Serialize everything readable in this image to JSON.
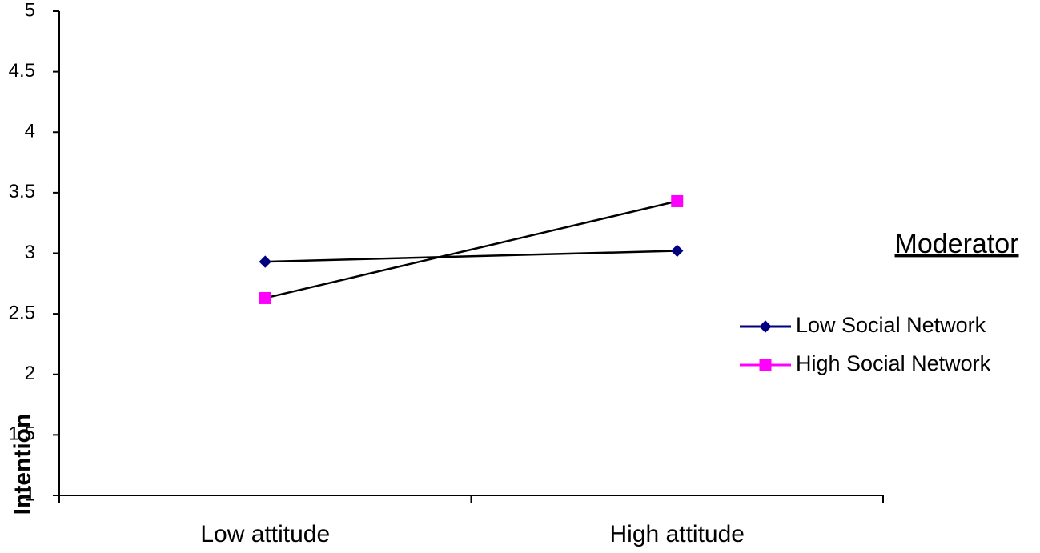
{
  "chart_data": {
    "type": "line",
    "y_label": "Intention",
    "legend_title": "Moderator",
    "legend": "right",
    "categories": [
      "Low attitude",
      "High attitude"
    ],
    "series": [
      {
        "name": "Low Social Network",
        "color": "#000080",
        "marker": "diamond",
        "values": [
          2.93,
          3.02
        ]
      },
      {
        "name": "High Social Network",
        "color": "#ff00ff",
        "marker": "square",
        "values": [
          2.63,
          3.43
        ]
      }
    ],
    "ylim": [
      1,
      5
    ],
    "yticks": [
      1,
      1.5,
      2,
      2.5,
      3,
      3.5,
      4,
      4.5,
      5
    ]
  }
}
